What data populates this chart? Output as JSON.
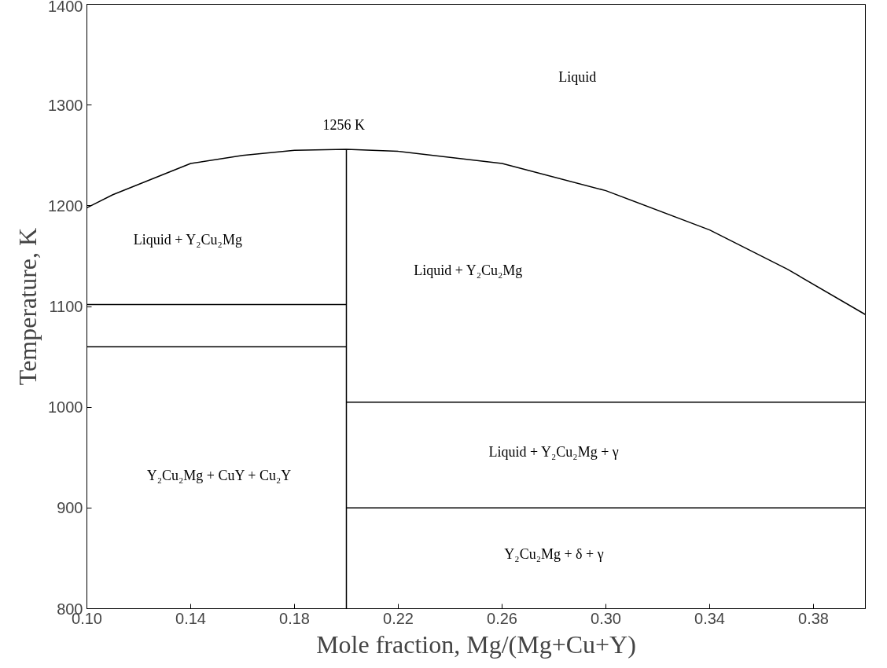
{
  "chart_data": {
    "type": "line",
    "xlabel": "Mole fraction, Mg/(Mg+Cu+Y)",
    "ylabel": "Temperature, K",
    "xlim": [
      0.1,
      0.4
    ],
    "ylim": [
      800,
      1400
    ],
    "xticks": [
      {
        "value": 0.1,
        "label": "0.10"
      },
      {
        "value": 0.14,
        "label": "0.14"
      },
      {
        "value": 0.18,
        "label": "0.18"
      },
      {
        "value": 0.22,
        "label": "0.22"
      },
      {
        "value": 0.26,
        "label": "0.26"
      },
      {
        "value": 0.3,
        "label": "0.30"
      },
      {
        "value": 0.34,
        "label": "0.34"
      },
      {
        "value": 0.38,
        "label": "0.38"
      }
    ],
    "yticks": [
      800,
      900,
      1000,
      1100,
      1200,
      1300,
      1400
    ],
    "grid": false,
    "marker": "none",
    "line_style": "solid",
    "series": [
      {
        "color": "#000000",
        "x": [
          0.1,
          0.11,
          0.14,
          0.16,
          0.18,
          0.2,
          0.22,
          0.26,
          0.3,
          0.34,
          0.37,
          0.4
        ],
        "values": [
          1198,
          1211,
          1242,
          1250,
          1255,
          1256,
          1254,
          1242,
          1215,
          1176,
          1137,
          1092
        ]
      },
      {
        "color": "#000000",
        "x": [
          0.2,
          0.2
        ],
        "values": [
          800,
          1256
        ]
      },
      {
        "color": "#000000",
        "x": [
          0.1,
          0.2
        ],
        "values": [
          1102,
          1102
        ]
      },
      {
        "color": "#000000",
        "x": [
          0.1,
          0.2
        ],
        "values": [
          1060,
          1060
        ]
      },
      {
        "color": "#000000",
        "x": [
          0.2,
          0.4
        ],
        "values": [
          1005,
          1005
        ]
      },
      {
        "color": "#000000",
        "x": [
          0.2,
          0.4
        ],
        "values": [
          900,
          900
        ]
      }
    ],
    "annotations": [
      "Liquid",
      "1256 K",
      "Liquid + Y₂Cu₂Mg",
      "Liquid + Y₂Cu₂Mg",
      "Liquid + Y₂Cu₂Mg + γ",
      "Y₂Cu₂Mg + CuY + Cu₂Y",
      "Y₂Cu₂Mg + δ + γ"
    ]
  }
}
